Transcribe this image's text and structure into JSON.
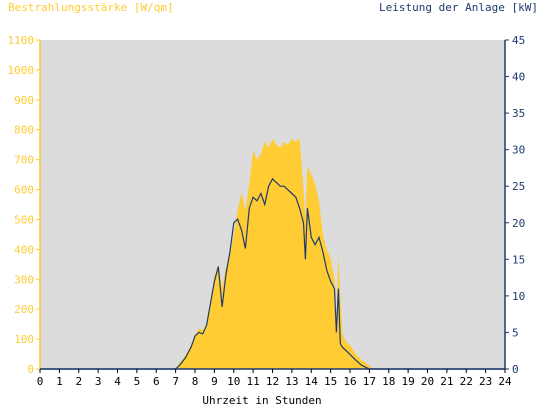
{
  "chart_data": {
    "type": "area",
    "left_axis_title": "Bestrahlungsstärke [W/qm]",
    "right_axis_title": "Leistung der Anlage [kW]",
    "xlabel": "Uhrzeit in Stunden",
    "x_ticks": [
      "0",
      "1",
      "2",
      "3",
      "4",
      "5",
      "6",
      "7",
      "8",
      "9",
      "10",
      "11",
      "12",
      "13",
      "14",
      "15",
      "16",
      "17",
      "18",
      "19",
      "20",
      "21",
      "22",
      "23",
      "24"
    ],
    "left_ticks": [
      "0",
      "100",
      "200",
      "300",
      "400",
      "500",
      "600",
      "700",
      "800",
      "900",
      "1000",
      "1100"
    ],
    "right_ticks": [
      "0",
      "5",
      "10",
      "15",
      "20",
      "25",
      "30",
      "35",
      "40",
      "45"
    ],
    "xlim": [
      0,
      24
    ],
    "ylim_left": [
      0,
      1100
    ],
    "ylim_right": [
      0,
      45
    ],
    "grid": false,
    "colors": {
      "irradiance": "#ffcc33",
      "power": "#1f3a6e",
      "plot_background": "#dcdcdc",
      "left_axis": "#ffcc33",
      "right_axis": "#1f3a6e"
    },
    "series": [
      {
        "axis": "left",
        "x": [
          0,
          7.0,
          7.2,
          7.5,
          7.8,
          8.0,
          8.2,
          8.4,
          8.6,
          8.8,
          9.0,
          9.2,
          9.4,
          9.6,
          9.8,
          10.0,
          10.2,
          10.4,
          10.6,
          10.8,
          11.0,
          11.2,
          11.4,
          11.6,
          11.8,
          12.0,
          12.2,
          12.4,
          12.6,
          12.8,
          13.0,
          13.2,
          13.4,
          13.6,
          13.7,
          13.8,
          14.0,
          14.2,
          14.4,
          14.6,
          14.8,
          15.0,
          15.2,
          15.3,
          15.4,
          15.5,
          15.6,
          15.8,
          16.0,
          16.3,
          16.6,
          17.0,
          17.2,
          17.5,
          24
        ],
        "values": [
          0,
          0,
          20,
          45,
          80,
          115,
          135,
          130,
          150,
          230,
          310,
          350,
          270,
          340,
          380,
          450,
          530,
          590,
          530,
          620,
          730,
          700,
          720,
          760,
          740,
          770,
          750,
          740,
          760,
          750,
          770,
          760,
          770,
          600,
          500,
          680,
          650,
          620,
          560,
          450,
          400,
          370,
          300,
          150,
          380,
          250,
          120,
          90,
          80,
          50,
          30,
          10,
          0,
          0,
          0
        ]
      },
      {
        "axis": "right",
        "x": [
          0,
          7.0,
          7.2,
          7.5,
          7.8,
          8.0,
          8.2,
          8.4,
          8.6,
          8.8,
          9.0,
          9.2,
          9.4,
          9.6,
          9.8,
          10.0,
          10.2,
          10.4,
          10.6,
          10.8,
          11.0,
          11.2,
          11.4,
          11.6,
          11.8,
          12.0,
          12.2,
          12.4,
          12.6,
          12.8,
          13.0,
          13.2,
          13.4,
          13.6,
          13.7,
          13.8,
          14.0,
          14.2,
          14.4,
          14.6,
          14.8,
          15.0,
          15.2,
          15.3,
          15.4,
          15.5,
          15.6,
          15.8,
          16.0,
          16.3,
          16.6,
          17.0,
          17.2,
          17.5,
          24
        ],
        "values": [
          0,
          0,
          0.5,
          1.5,
          3,
          4.5,
          5,
          4.8,
          6,
          9,
          12,
          14,
          8.5,
          13,
          16,
          20,
          20.5,
          19,
          16.5,
          22,
          23.5,
          23,
          24,
          22.5,
          25,
          26,
          25.5,
          25,
          25,
          24.5,
          24,
          23.5,
          22,
          20,
          15,
          22,
          18,
          17,
          18,
          16,
          13.5,
          12,
          11,
          5,
          11,
          3.5,
          3,
          2.5,
          2,
          1.2,
          0.5,
          0,
          0,
          0,
          0
        ]
      }
    ]
  }
}
